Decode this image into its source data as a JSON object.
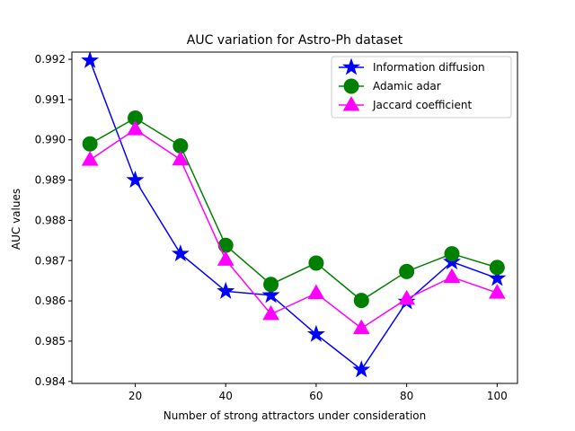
{
  "chart_data": {
    "type": "line",
    "title": "AUC variation for Astro-Ph dataset",
    "xlabel": "Number of strong attractors under consideration",
    "ylabel": "AUC values",
    "xlim": [
      6,
      104.5
    ],
    "ylim": [
      0.98395,
      0.99218
    ],
    "x_ticks": [
      20,
      40,
      60,
      80,
      100
    ],
    "y_ticks": [
      0.984,
      0.985,
      0.986,
      0.987,
      0.988,
      0.989,
      0.99,
      0.991,
      0.992
    ],
    "grid": false,
    "legend_position": "top-right",
    "x": [
      10,
      20,
      30,
      40,
      50,
      60,
      70,
      80,
      90,
      100
    ],
    "series": [
      {
        "name": "Information diffusion",
        "color": "#0000ff",
        "marker": "star",
        "values": [
          0.99197,
          0.989,
          0.98717,
          0.98624,
          0.98614,
          0.98517,
          0.98429,
          0.98598,
          0.98697,
          0.98656
        ]
      },
      {
        "name": "Adamic adar",
        "color": "#008000",
        "marker": "circle",
        "values": [
          0.9899,
          0.99054,
          0.98985,
          0.98738,
          0.98641,
          0.98694,
          0.98601,
          0.98673,
          0.98717,
          0.98683
        ]
      },
      {
        "name": "Jaccard coefficient",
        "color": "#ff00ff",
        "marker": "triangle",
        "values": [
          0.9895,
          0.99026,
          0.98951,
          0.98702,
          0.98567,
          0.98619,
          0.98532,
          0.98605,
          0.98659,
          0.9862
        ]
      }
    ]
  }
}
